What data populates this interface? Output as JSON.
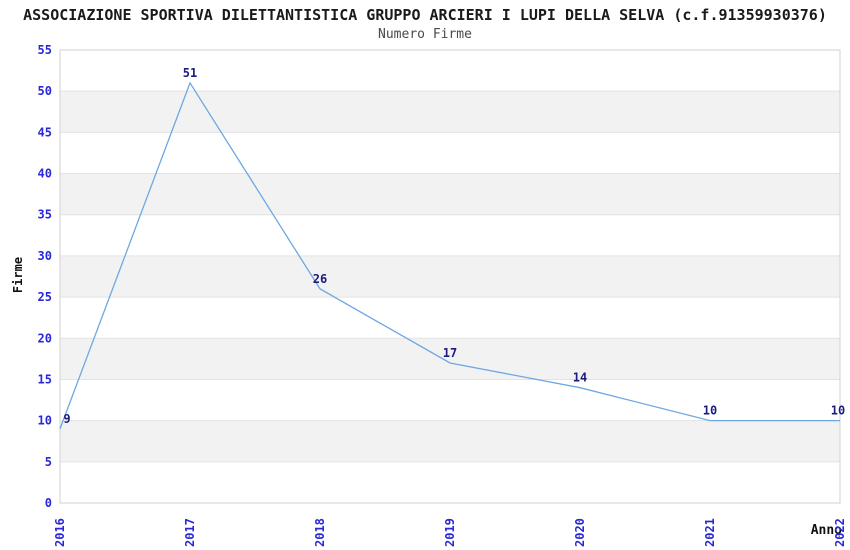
{
  "chart_data": {
    "type": "line",
    "title": "ASSOCIAZIONE SPORTIVA DILETTANTISTICA GRUPPO ARCIERI I LUPI DELLA SELVA (c.f.91359930376)",
    "subtitle": "Numero Firme",
    "xlabel": "Anno",
    "ylabel": "Firme",
    "categories": [
      "2016",
      "2017",
      "2018",
      "2019",
      "2020",
      "2021",
      "2022"
    ],
    "values": [
      9,
      51,
      26,
      17,
      14,
      10,
      10
    ],
    "ylim": [
      0,
      55
    ],
    "ytick_step": 5,
    "yticks": [
      0,
      5,
      10,
      15,
      20,
      25,
      30,
      35,
      40,
      45,
      50,
      55
    ],
    "grid": "horizontal-bands-alternating",
    "legend": "none",
    "colors": {
      "line": "#6ea7e3",
      "tick_label": "#2828d8",
      "point_label": "#1b1b80",
      "band": "#f2f2f2",
      "gridline": "#e3e3e3",
      "plot_border": "#d2d2d2",
      "title": "#1a1a1a",
      "subtitle": "#4a4a4a"
    }
  }
}
